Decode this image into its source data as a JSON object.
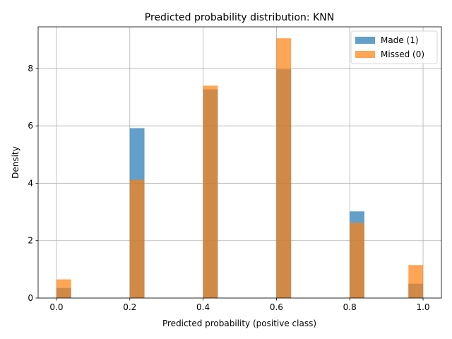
{
  "chart_data": {
    "type": "bar",
    "title": "Predicted probability distribution: KNN",
    "xlabel": "Predicted probability (positive class)",
    "ylabel": "Density",
    "xlim": [
      -0.05,
      1.05
    ],
    "ylim": [
      0,
      9.45
    ],
    "x_ticks": [
      "0.0",
      "0.2",
      "0.4",
      "0.6",
      "0.8",
      "1.0"
    ],
    "x_tick_values": [
      0.0,
      0.2,
      0.4,
      0.6,
      0.8,
      1.0
    ],
    "y_ticks": [
      "0",
      "2",
      "4",
      "6",
      "8"
    ],
    "y_tick_values": [
      0,
      2,
      4,
      6,
      8
    ],
    "grid": true,
    "legend_placement": "top-right",
    "bin_edges": [
      [
        0.0,
        0.04
      ],
      [
        0.2,
        0.24
      ],
      [
        0.4,
        0.44
      ],
      [
        0.6,
        0.64
      ],
      [
        0.8,
        0.84
      ],
      [
        0.96,
        1.0
      ]
    ],
    "series": [
      {
        "name": "Made (1)",
        "color": "#1f77b4",
        "values": [
          0.35,
          5.92,
          7.27,
          7.97,
          3.02,
          0.5
        ]
      },
      {
        "name": "Missed (0)",
        "color": "#ff7f0e",
        "values": [
          0.65,
          4.12,
          7.4,
          9.05,
          2.62,
          1.15
        ]
      }
    ]
  }
}
